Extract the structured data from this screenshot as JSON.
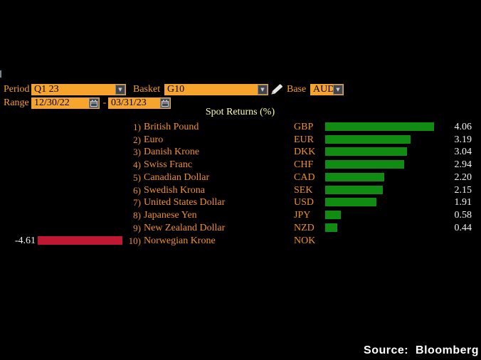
{
  "controls": {
    "period": {
      "label": "Period",
      "value": "Q1 23"
    },
    "basket": {
      "label": "Basket",
      "value": "G10"
    },
    "base": {
      "label": "Base",
      "value": "AUD"
    },
    "range": {
      "label": "Range",
      "start": "12/30/22",
      "separator": "-",
      "end": "03/31/23"
    }
  },
  "icons": {
    "dropdown": "▼",
    "calendar": "calendar-icon",
    "pencil": "pencil-icon"
  },
  "chart_data": {
    "type": "bar",
    "orientation": "horizontal",
    "title": "Spot Returns (%)",
    "value_unit": "%",
    "xlim": [
      -5,
      4.5
    ],
    "rows": [
      {
        "rank": "1)",
        "name": "British Pound",
        "code": "GBP",
        "value": 4.06
      },
      {
        "rank": "2)",
        "name": "Euro",
        "code": "EUR",
        "value": 3.19
      },
      {
        "rank": "3)",
        "name": "Danish Krone",
        "code": "DKK",
        "value": 3.04
      },
      {
        "rank": "4)",
        "name": "Swiss Franc",
        "code": "CHF",
        "value": 2.94
      },
      {
        "rank": "5)",
        "name": "Canadian Dollar",
        "code": "CAD",
        "value": 2.2
      },
      {
        "rank": "6)",
        "name": "Swedish Krona",
        "code": "SEK",
        "value": 2.15
      },
      {
        "rank": "7)",
        "name": "United States Dollar",
        "code": "USD",
        "value": 1.91
      },
      {
        "rank": "8)",
        "name": "Japanese Yen",
        "code": "JPY",
        "value": 0.58
      },
      {
        "rank": "9)",
        "name": "New Zealand Dollar",
        "code": "NZD",
        "value": 0.44
      },
      {
        "rank": "10)",
        "name": "Norwegian Krone",
        "code": "NOK",
        "value": -4.61
      }
    ],
    "positive_color": "#108c12",
    "negative_color": "#c01733",
    "legend": "none",
    "grid": false
  },
  "footer": {
    "source_text": "Source: Bloomberg"
  },
  "colors": {
    "background": "#000000",
    "field_amber": "#f7a42c",
    "label_orange": "#f59e23",
    "list_orange": "#ef9126",
    "title_yellow": "#ffffa2",
    "value_white": "#f2f2f2"
  }
}
